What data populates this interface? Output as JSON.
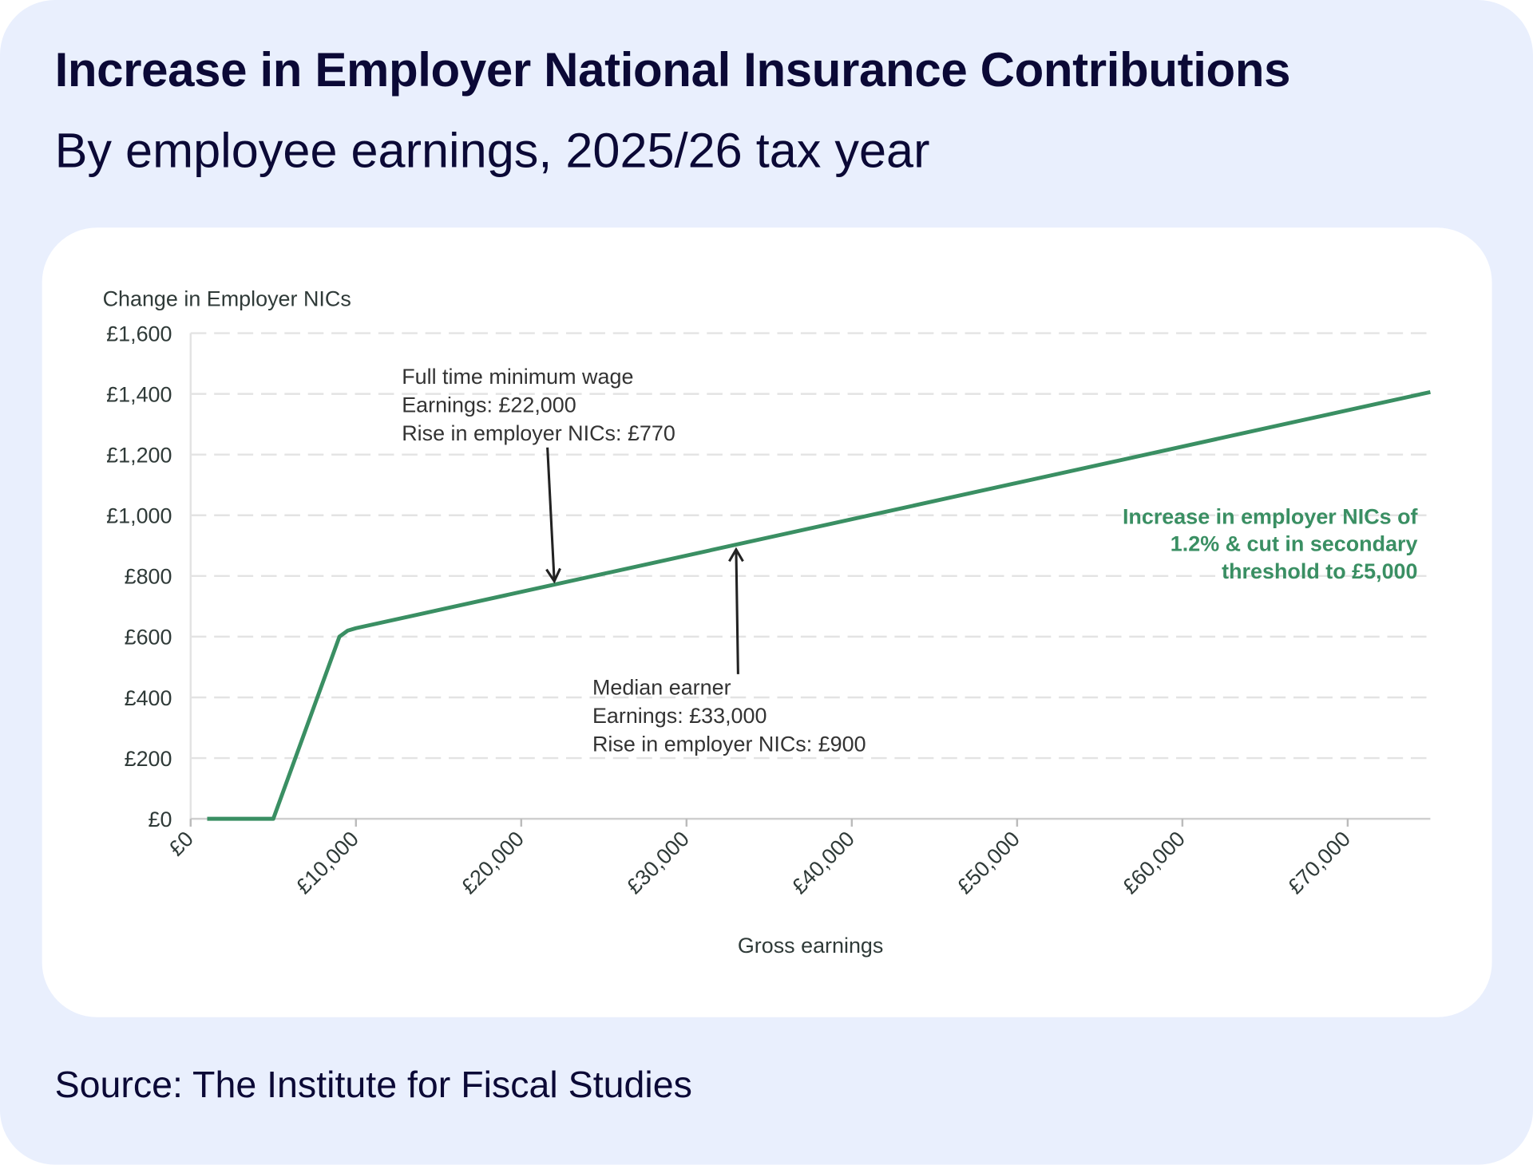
{
  "header": {
    "title": "Increase in Employer National Insurance Contributions",
    "subtitle": "By employee earnings, 2025/26 tax year"
  },
  "footer": {
    "source": "Source: The Institute for Fiscal Studies"
  },
  "colors": {
    "background": "#e9effd",
    "title": "#0b0936",
    "line": "#3a8f63",
    "grid": "#e3e3e3"
  },
  "chart_data": {
    "type": "line",
    "title": "Increase in Employer National Insurance Contributions",
    "subtitle": "By employee earnings, 2025/26 tax year",
    "xlabel": "Gross earnings",
    "ylabel": "Change in Employer NICs",
    "xlim": [
      0,
      75000
    ],
    "ylim": [
      0,
      1600
    ],
    "grid": true,
    "x_ticks": [
      0,
      10000,
      20000,
      30000,
      40000,
      50000,
      60000,
      70000
    ],
    "x_tick_labels": [
      "£0",
      "£10,000",
      "£20,000",
      "£30,000",
      "£40,000",
      "£50,000",
      "£60,000",
      "£70,000"
    ],
    "y_ticks": [
      0,
      200,
      400,
      600,
      800,
      1000,
      1200,
      1400,
      1600
    ],
    "y_tick_labels": [
      "£0",
      "£200",
      "£400",
      "£600",
      "£800",
      "£1,000",
      "£1,200",
      "£1,400",
      "£1,600"
    ],
    "series": [
      {
        "name": "Increase in employer NICs of 1.2% & cut in secondary threshold to £5,000",
        "label_lines": [
          "Increase in employer NICs of",
          "1.2% & cut in secondary",
          "threshold to £5,000"
        ],
        "x": [
          1000,
          5000,
          9000,
          9500,
          10000,
          75000
        ],
        "y": [
          0,
          0,
          600,
          620,
          628,
          1406
        ]
      }
    ],
    "annotations": [
      {
        "x": 22000,
        "y": 770,
        "lines": [
          "Full time minimum wage",
          "Earnings: £22,000",
          "Rise in employer NICs: £770"
        ],
        "position": "above"
      },
      {
        "x": 33000,
        "y": 900,
        "lines": [
          "Median earner",
          "Earnings: £33,000",
          "Rise in employer NICs: £900"
        ],
        "position": "below"
      }
    ]
  }
}
